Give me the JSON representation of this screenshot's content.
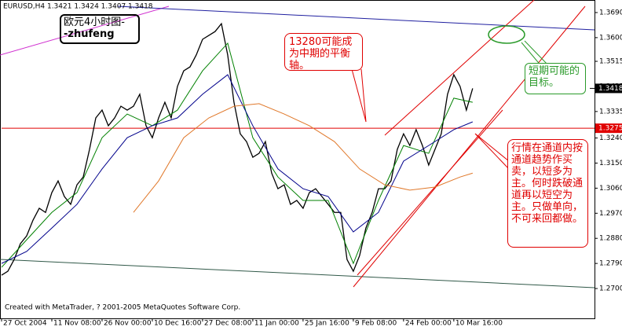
{
  "chart_data": {
    "type": "line",
    "info": "EURUSD,H4  1.3421 1.3424 1.3407 1.3418",
    "footer": "Created with MetaTrader, ? 2001-2005 MetaQuotes Software Corp.",
    "x": [
      0,
      1,
      2,
      3,
      4,
      5,
      6,
      7,
      8,
      9,
      10,
      11,
      12,
      13,
      14,
      15,
      16,
      17,
      18,
      19,
      20,
      21,
      22,
      23,
      24,
      25,
      26,
      27,
      28,
      29,
      30,
      31,
      32,
      33,
      34,
      35,
      36,
      37,
      38,
      39,
      40,
      41,
      42,
      43,
      44,
      45,
      46,
      47,
      48,
      49,
      50,
      51,
      52,
      53,
      54,
      55,
      56,
      57,
      58,
      59,
      60,
      61,
      62,
      63,
      64,
      65,
      66,
      67,
      68,
      69,
      70,
      71,
      72,
      73,
      74,
      75
    ],
    "series": [
      {
        "color": "#000000",
        "values": [
          1.2748,
          1.2762,
          1.2804,
          1.2861,
          1.2889,
          1.2945,
          1.2988,
          1.2973,
          1.3044,
          1.3086,
          1.303,
          1.3002,
          1.3072,
          1.31,
          1.3199,
          1.3312,
          1.334,
          1.3284,
          1.3312,
          1.3354,
          1.334,
          1.3354,
          1.3397,
          1.3284,
          1.3241,
          1.3312,
          1.3368,
          1.3312,
          1.3425,
          1.3481,
          1.3495,
          1.3538,
          1.3594,
          1.3608,
          1.3622,
          1.365,
          1.3538,
          1.3368,
          1.3255,
          1.3227,
          1.3171,
          1.3185,
          1.3227,
          1.3114,
          1.3058,
          1.3072,
          1.3002,
          1.3016,
          1.2988,
          1.3044,
          1.3058,
          1.303,
          1.3002,
          1.2973,
          1.2973,
          1.2804,
          1.2762,
          1.2818,
          1.2917,
          1.2973,
          1.3058,
          1.3058,
          1.3086,
          1.3199,
          1.3255,
          1.3213,
          1.327,
          1.3213,
          1.3143,
          1.3199,
          1.3255,
          1.3397,
          1.3467,
          1.3425,
          1.334,
          1.3418
        ]
      },
      {
        "color": "#008000",
        "x": [
          0,
          4,
          8,
          12,
          16,
          20,
          24,
          28,
          32,
          36,
          40,
          44,
          48,
          52,
          56,
          60,
          64,
          68,
          72,
          75
        ],
        "values": [
          1.2776,
          1.2875,
          1.2973,
          1.3044,
          1.3241,
          1.3326,
          1.3284,
          1.334,
          1.3481,
          1.358,
          1.3241,
          1.31,
          1.3016,
          1.3016,
          1.279,
          1.3016,
          1.3213,
          1.3185,
          1.3383,
          1.3368
        ]
      },
      {
        "color": "#00008b",
        "x": [
          0,
          4,
          8,
          12,
          16,
          20,
          24,
          28,
          32,
          36,
          40,
          44,
          48,
          52,
          56,
          60,
          64,
          68,
          72,
          75
        ],
        "values": [
          1.279,
          1.2833,
          1.2917,
          1.3002,
          1.3129,
          1.3241,
          1.3284,
          1.3312,
          1.3397,
          1.3467,
          1.3284,
          1.3129,
          1.3058,
          1.303,
          1.2903,
          1.2973,
          1.3157,
          1.3213,
          1.327,
          1.3298
        ]
      },
      {
        "color": "#e0782a",
        "x": [
          21,
          25,
          29,
          33,
          37,
          41,
          45,
          49,
          53,
          57,
          61,
          65,
          69,
          73,
          75
        ],
        "values": [
          1.2973,
          1.3086,
          1.3241,
          1.3312,
          1.3354,
          1.3363,
          1.3326,
          1.3284,
          1.3227,
          1.3129,
          1.3072,
          1.3053,
          1.3064,
          1.31,
          1.3114
        ]
      }
    ],
    "xlim": [
      0,
      94.4
    ],
    "xticks": [
      {
        "value": 0,
        "label": "27 Oct 2004"
      },
      {
        "value": 8,
        "label": "11 Nov 08:00"
      },
      {
        "value": 16,
        "label": "26 Nov 00:00"
      },
      {
        "value": 24,
        "label": "10 Dec 16:00"
      },
      {
        "value": 32,
        "label": "27 Dec 08:00"
      },
      {
        "value": 40,
        "label": "11 Jan 00:00"
      },
      {
        "value": 48,
        "label": "25 Jan 16:00"
      },
      {
        "value": 56,
        "label": "9 Feb 08:00"
      },
      {
        "value": 64,
        "label": "24 Feb 00:00"
      },
      {
        "value": 72,
        "label": "10 Mar 16:00"
      }
    ],
    "ylim": [
      1.2593,
      1.3735
    ],
    "yticks": [
      {
        "value": 1.369,
        "label": "1.3690"
      },
      {
        "value": 1.36,
        "label": "1.3600"
      },
      1.3515,
      1.3425,
      1.3335,
      {
        "value": 1.324,
        "label": "1.3240"
      },
      {
        "value": 1.315,
        "label": "1.3150"
      },
      {
        "value": 1.306,
        "label": "1.3060"
      },
      {
        "value": 1.297,
        "label": "1.2970"
      },
      {
        "value": 1.288,
        "label": "1.2880"
      },
      {
        "value": 1.279,
        "label": "1.2790"
      },
      {
        "value": 1.27,
        "label": "1.2700"
      }
    ],
    "hline": {
      "value": 1.3275,
      "label": "1.3275",
      "color": "#e00000"
    },
    "last": {
      "value": 1.3418,
      "label": "1.3418"
    },
    "annotations": {
      "box_title_1": "欧元4小时图-",
      "box_title_2": "-zhufeng",
      "axis_note": "13280可能成为中期的平衡轴。",
      "target_note": "短期可能的目标。",
      "channel_note": "行情在通道内按通道趋势作买卖，以短多为主。何时跌破通道再以短空为主。只做单向，不可来回都做。"
    }
  }
}
